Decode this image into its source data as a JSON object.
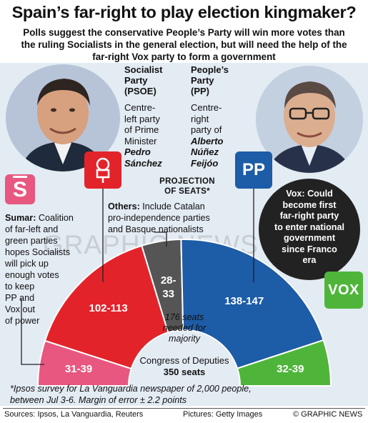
{
  "headline": "Spain’s far-right to play election kingmaker?",
  "subhead": "Polls suggest the conservative People’s Party will win more votes than the ruling Socialists in the general election, but will need the help of the far-right Vox party to form a government",
  "psoe": {
    "name_lines": [
      "Socialist",
      "Party",
      "(PSOE)"
    ],
    "desc_lines": [
      "Centre-",
      "left party",
      "of Prime",
      "Minister"
    ],
    "leader_lines": [
      "Pedro",
      "Sánchez"
    ]
  },
  "pp": {
    "name_lines": [
      "People’s",
      "Party",
      "(PP)"
    ],
    "desc_lines": [
      "Centre-",
      "right",
      "party of"
    ],
    "leader_lines": [
      "Alberto",
      "Núñez",
      "Feijóo"
    ],
    "logo_text": "PP"
  },
  "sumar": {
    "name": "Sumar:",
    "desc_lines": [
      " Coalition",
      "of far-left and",
      "green parties",
      "hopes Socialists",
      "will pick up",
      "enough votes",
      "to keep",
      "PP and",
      "Vox out",
      "of power"
    ],
    "logo_text": "S"
  },
  "vox": {
    "note_lines": [
      "Vox: Could",
      "become first",
      "far-right party",
      "to enter national",
      "government",
      "since Franco",
      "era"
    ],
    "logo_text": "VOX"
  },
  "projection_lines": [
    "PROJECTION",
    "OF SEATS*"
  ],
  "others": {
    "name": "Others:",
    "desc_lines": [
      " Include Catalan",
      "pro-independence parties",
      "and Basque nationalists"
    ]
  },
  "majority_lines": [
    "176 seats",
    "needed for",
    "majority"
  ],
  "congress_lines": [
    "Congress of Deputies",
    "350 seats"
  ],
  "footnote_lines": [
    "*Ipsos survey for La Vanguardia newspaper of 2,000 people,",
    "between Jul 3-6. Margin of error ± 2.2 points"
  ],
  "footer": {
    "sources": "Sources: Ipsos, La Vanguardia, Reuters",
    "pictures": "Pictures: Getty Images",
    "credit": "© GRAPHIC NEWS"
  },
  "watermark": "GRAPHIC NEWS",
  "colors": {
    "sumar": "#e8577f",
    "psoe": "#e2242a",
    "others": "#555555",
    "pp": "#1d5ca6",
    "vox": "#4fb53a",
    "bg_panel": "#dbe6f0"
  },
  "chart_data": {
    "type": "pie",
    "title": "Congress of Deputies",
    "total_seats": 350,
    "majority": 176,
    "segments": [
      {
        "name": "Sumar",
        "label": "31-39",
        "low": 31,
        "high": 39,
        "color": "#e8577f"
      },
      {
        "name": "PSOE",
        "label": "102-113",
        "low": 102,
        "high": 113,
        "color": "#e2242a"
      },
      {
        "name": "Others",
        "label": "28-33",
        "low": 28,
        "high": 33,
        "color": "#555555"
      },
      {
        "name": "PP",
        "label": "138-147",
        "low": 138,
        "high": 147,
        "color": "#1d5ca6"
      },
      {
        "name": "Vox",
        "label": "32-39",
        "low": 32,
        "high": 39,
        "color": "#4fb53a"
      }
    ]
  }
}
